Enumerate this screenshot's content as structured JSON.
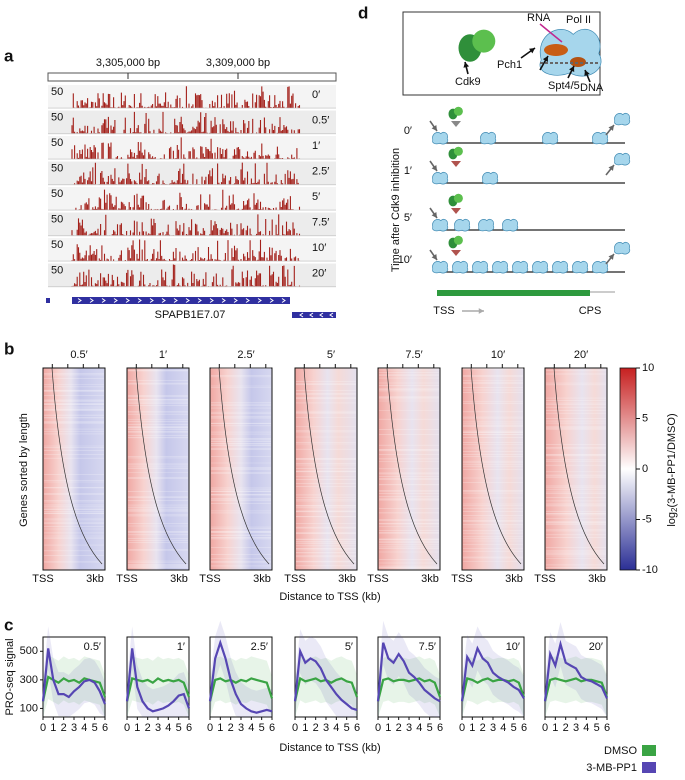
{
  "panel_a": {
    "label": "a",
    "coords": [
      "3,305,000 bp",
      "3,309,000 bp"
    ],
    "tracks": [
      {
        "scale": "50",
        "time": "0′"
      },
      {
        "scale": "50",
        "time": "0.5′"
      },
      {
        "scale": "50",
        "time": "1′"
      },
      {
        "scale": "50",
        "time": "2.5′"
      },
      {
        "scale": "50",
        "time": "5′"
      },
      {
        "scale": "50",
        "time": "7.5′"
      },
      {
        "scale": "50",
        "time": "10′"
      },
      {
        "scale": "50",
        "time": "20′"
      }
    ],
    "gene": "SPAPB1E7.07"
  },
  "panel_b": {
    "label": "b",
    "panels": [
      "0.5′",
      "1′",
      "2.5′",
      "5′",
      "7.5′",
      "10′",
      "20′"
    ],
    "x_start": "TSS",
    "x_end": "3kb",
    "x_label": "Distance to TSS (kb)",
    "y_label": "Genes sorted by length",
    "colorbar": {
      "lim": [
        -10,
        10
      ],
      "ticks": [
        10,
        5,
        0,
        -5,
        -10
      ],
      "label_base": "log",
      "label_sub": "2",
      "label_rest": "(3-MB-PP1/DMSO)"
    }
  },
  "panel_c_label": "c",
  "chart_data": {
    "type": "line",
    "y_label": "PRO-seq signal",
    "x_label": "Distance to TSS (kb)",
    "x": [
      0,
      0.5,
      1,
      1.5,
      2,
      2.5,
      3,
      3.5,
      4,
      4.5,
      5,
      5.5,
      6
    ],
    "xlim": [
      0,
      6
    ],
    "xticks": [
      0,
      1,
      2,
      3,
      4,
      5,
      6
    ],
    "ylim": [
      40,
      600
    ],
    "yticks": [
      100,
      300,
      500
    ],
    "series": [
      {
        "name": "DMSO",
        "color": "#3aa444"
      },
      {
        "name": "3-MB-PP1",
        "color": "#5646b3"
      }
    ],
    "panels": [
      {
        "title": "0.5′",
        "values": [
          [
            150,
            320,
            300,
            280,
            310,
            290,
            300,
            280,
            310,
            300,
            290,
            280,
            180
          ],
          [
            150,
            520,
            300,
            200,
            200,
            180,
            220,
            250,
            290,
            300,
            280,
            220,
            130
          ]
        ]
      },
      {
        "title": "1′",
        "values": [
          [
            150,
            310,
            300,
            290,
            300,
            280,
            310,
            290,
            300,
            290,
            300,
            280,
            180
          ],
          [
            150,
            520,
            250,
            150,
            100,
            80,
            90,
            100,
            120,
            150,
            190,
            200,
            100
          ]
        ]
      },
      {
        "title": "2.5′",
        "values": [
          [
            150,
            300,
            310,
            290,
            300,
            280,
            300,
            290,
            310,
            300,
            290,
            280,
            170
          ],
          [
            150,
            450,
            560,
            450,
            300,
            200,
            130,
            100,
            80,
            70,
            80,
            90,
            80
          ]
        ]
      },
      {
        "title": "5′",
        "values": [
          [
            150,
            310,
            290,
            300,
            310,
            290,
            300,
            280,
            300,
            310,
            290,
            280,
            180
          ],
          [
            150,
            500,
            420,
            450,
            430,
            380,
            300,
            250,
            200,
            160,
            130,
            100,
            90
          ]
        ]
      },
      {
        "title": "7.5′",
        "values": [
          [
            150,
            300,
            310,
            290,
            300,
            300,
            290,
            300,
            310,
            290,
            300,
            280,
            180
          ],
          [
            150,
            560,
            450,
            420,
            480,
            430,
            350,
            320,
            280,
            230,
            200,
            170,
            150
          ]
        ]
      },
      {
        "title": "10′",
        "values": [
          [
            150,
            310,
            300,
            280,
            300,
            310,
            290,
            300,
            300,
            290,
            300,
            280,
            180
          ],
          [
            150,
            460,
            400,
            520,
            450,
            420,
            350,
            320,
            300,
            280,
            250,
            230,
            170
          ]
        ]
      },
      {
        "title": "20′",
        "values": [
          [
            150,
            300,
            310,
            300,
            290,
            300,
            310,
            290,
            300,
            300,
            290,
            280,
            180
          ],
          [
            150,
            480,
            400,
            550,
            420,
            400,
            380,
            320,
            300,
            290,
            270,
            250,
            170
          ]
        ]
      }
    ]
  },
  "panel_d": {
    "label": "d",
    "legend": {
      "rna": "RNA",
      "pol2": "Pol II",
      "pch1": "Pch1",
      "cdk9": "Cdk9",
      "spt": "Spt4/5",
      "dna": "DNA"
    },
    "y_label": "Time after Cdk9 inhibition",
    "times": [
      "0′",
      "1′",
      "5′",
      "10′"
    ],
    "tss": "TSS",
    "cps": "CPS"
  }
}
